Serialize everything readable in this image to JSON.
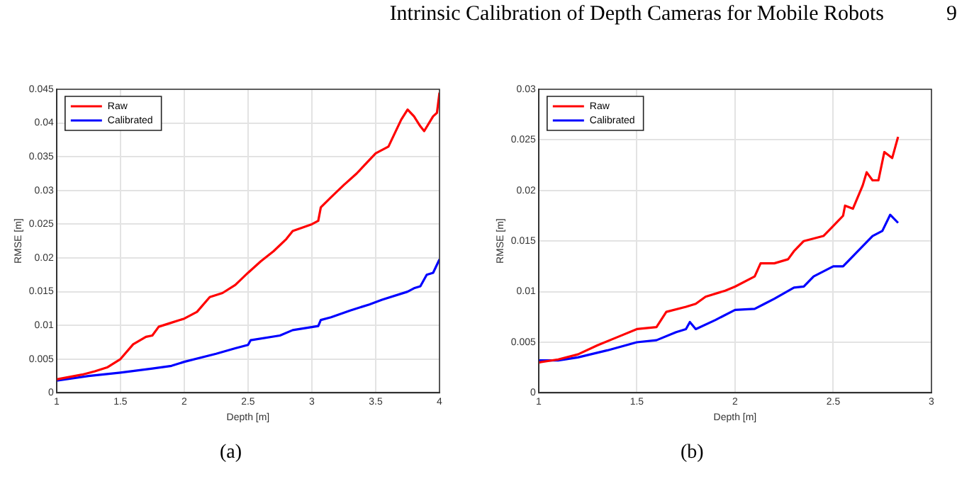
{
  "chart_data": [
    {
      "type": "line",
      "annotations": [
        "Intrinsic Calibration of Depth Cameras for Mobile Robots",
        "9",
        "(a)"
      ],
      "xlabel": "Depth [m]",
      "ylabel": "RMSE [m]",
      "xlim": [
        1,
        4
      ],
      "xticks": [
        1,
        1.5,
        2,
        2.5,
        3,
        3.5,
        4
      ],
      "ylim": [
        0,
        0.045
      ],
      "yticks": [
        0,
        0.005,
        0.01,
        0.015,
        0.02,
        0.025,
        0.03,
        0.035,
        0.04,
        0.045
      ],
      "grid": true,
      "legend": "top left",
      "marker": "none",
      "line_style": "solid",
      "series": [
        {
          "name": "Raw",
          "color": "#ff0000",
          "x": [
            1,
            1.2,
            1.3,
            1.4,
            1.5,
            1.6,
            1.7,
            1.75,
            1.8,
            1.9,
            2.0,
            2.1,
            2.2,
            2.3,
            2.4,
            2.5,
            2.6,
            2.7,
            2.8,
            2.85,
            3.0,
            3.05,
            3.07,
            3.15,
            3.25,
            3.35,
            3.45,
            3.5,
            3.6,
            3.65,
            3.7,
            3.75,
            3.8,
            3.85,
            3.88,
            3.95,
            3.98,
            4.0
          ],
          "values": [
            0.002,
            0.0027,
            0.0032,
            0.0038,
            0.005,
            0.0072,
            0.0083,
            0.0085,
            0.0098,
            0.0104,
            0.011,
            0.012,
            0.0142,
            0.0148,
            0.016,
            0.0178,
            0.0195,
            0.021,
            0.0228,
            0.024,
            0.025,
            0.0255,
            0.0275,
            0.029,
            0.0308,
            0.0325,
            0.0345,
            0.0355,
            0.0365,
            0.0385,
            0.0405,
            0.042,
            0.041,
            0.0395,
            0.0388,
            0.041,
            0.0415,
            0.0445
          ]
        },
        {
          "name": "Calibrated",
          "color": "#0000ff",
          "x": [
            1,
            1.25,
            1.5,
            1.75,
            1.9,
            2.0,
            2.25,
            2.4,
            2.5,
            2.52,
            2.75,
            2.85,
            3.05,
            3.07,
            3.15,
            3.3,
            3.45,
            3.55,
            3.75,
            3.8,
            3.85,
            3.9,
            3.95,
            4.0
          ],
          "values": [
            0.0018,
            0.0025,
            0.003,
            0.0036,
            0.004,
            0.0046,
            0.0058,
            0.0066,
            0.0071,
            0.0078,
            0.0085,
            0.0093,
            0.0099,
            0.0108,
            0.0112,
            0.0122,
            0.0131,
            0.0138,
            0.015,
            0.0155,
            0.0158,
            0.0175,
            0.0178,
            0.0198
          ]
        }
      ]
    },
    {
      "type": "line",
      "annotations": [
        "(b)"
      ],
      "xlabel": "Depth [m]",
      "ylabel": "RMSE [m]",
      "xlim": [
        1,
        3
      ],
      "xticks": [
        1,
        1.5,
        2,
        2.5,
        3
      ],
      "ylim": [
        0,
        0.03
      ],
      "yticks": [
        0,
        0.005,
        0.01,
        0.015,
        0.02,
        0.025,
        0.03
      ],
      "grid": true,
      "legend": "top left",
      "marker": "none",
      "line_style": "solid",
      "series": [
        {
          "name": "Raw",
          "color": "#ff0000",
          "x": [
            1,
            1.1,
            1.2,
            1.3,
            1.4,
            1.5,
            1.6,
            1.65,
            1.75,
            1.8,
            1.85,
            1.95,
            2.0,
            2.1,
            2.13,
            2.2,
            2.27,
            2.3,
            2.35,
            2.45,
            2.5,
            2.55,
            2.56,
            2.6,
            2.65,
            2.67,
            2.7,
            2.73,
            2.76,
            2.8,
            2.83
          ],
          "values": [
            0.003,
            0.0033,
            0.0038,
            0.0047,
            0.0055,
            0.0063,
            0.0065,
            0.008,
            0.0085,
            0.0088,
            0.0095,
            0.0101,
            0.0105,
            0.0115,
            0.0128,
            0.0128,
            0.0132,
            0.014,
            0.015,
            0.0155,
            0.0165,
            0.0175,
            0.0185,
            0.0182,
            0.0205,
            0.0218,
            0.021,
            0.021,
            0.0238,
            0.0232,
            0.0253
          ]
        },
        {
          "name": "Calibrated",
          "color": "#0000ff",
          "x": [
            1,
            1.1,
            1.2,
            1.35,
            1.5,
            1.6,
            1.7,
            1.75,
            1.77,
            1.8,
            1.9,
            2.0,
            2.1,
            2.15,
            2.2,
            2.3,
            2.35,
            2.4,
            2.5,
            2.55,
            2.6,
            2.65,
            2.7,
            2.75,
            2.79,
            2.83
          ],
          "values": [
            0.0032,
            0.0032,
            0.0035,
            0.0042,
            0.005,
            0.0052,
            0.006,
            0.0063,
            0.007,
            0.0063,
            0.0072,
            0.0082,
            0.0083,
            0.0088,
            0.0093,
            0.0104,
            0.0105,
            0.0115,
            0.0125,
            0.0125,
            0.0135,
            0.0145,
            0.0155,
            0.016,
            0.0176,
            0.0168
          ]
        }
      ]
    }
  ]
}
